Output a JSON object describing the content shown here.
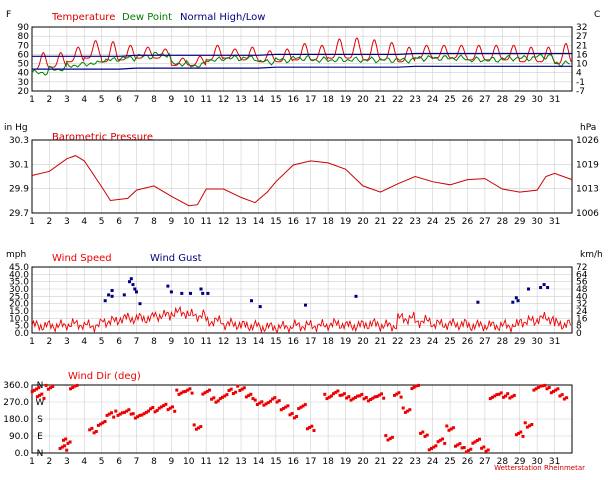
{
  "colors": {
    "temperature": "#dd0000",
    "dew_point": "#008000",
    "normal": "#000080",
    "pressure": "#cc0000",
    "wind_speed": "#ee0000",
    "wind_gust": "#000080",
    "wind_dir": "#ee0000",
    "grid": "#cfcfcf"
  },
  "x_days": [
    "1",
    "2",
    "3",
    "4",
    "5",
    "6",
    "7",
    "8",
    "9",
    "10",
    "11",
    "12",
    "13",
    "14",
    "15",
    "16",
    "17",
    "18",
    "19",
    "20",
    "21",
    "22",
    "23",
    "24",
    "25",
    "26",
    "27",
    "28",
    "29",
    "30",
    "31"
  ],
  "credit": "Wetterstation Rheinmetar",
  "chart_data": [
    {
      "type": "line",
      "id": "temperature",
      "legend": [
        "Temperature",
        "Dew Point",
        "Normal High/Low"
      ],
      "left_unit": "F",
      "right_unit": "C",
      "ylim": [
        20,
        90
      ],
      "yticks": [
        "90",
        "80",
        "70",
        "60",
        "50",
        "40",
        "30",
        "20"
      ],
      "right_ticks": [
        "32",
        "27",
        "21",
        "16",
        "10",
        "4",
        "-1",
        "-7"
      ],
      "grid": true,
      "series": [
        {
          "name": "Temperature",
          "peaks": [
            62,
            62,
            68,
            75,
            74,
            70,
            68,
            66,
            56,
            58,
            70,
            66,
            68,
            64,
            66,
            72,
            70,
            77,
            78,
            76,
            73,
            68,
            70,
            70,
            70,
            70,
            70,
            70,
            68,
            68,
            72
          ],
          "lows": [
            44,
            46,
            52,
            56,
            52,
            54,
            56,
            56,
            48,
            48,
            54,
            56,
            54,
            52,
            52,
            54,
            54,
            56,
            56,
            54,
            54,
            52,
            56,
            56,
            56,
            54,
            54,
            54,
            52,
            52,
            50
          ]
        },
        {
          "name": "Dew Point",
          "values": [
            40,
            44,
            48,
            50,
            54,
            56,
            58,
            60,
            50,
            48,
            54,
            56,
            56,
            52,
            54,
            56,
            54,
            54,
            54,
            54,
            54,
            54,
            56,
            56,
            56,
            54,
            54,
            56,
            56,
            58,
            50
          ]
        },
        {
          "name": "Normal High/Low",
          "high": [
            58,
            58,
            58,
            58,
            58,
            58,
            59,
            59,
            59,
            59,
            59,
            59,
            59,
            59,
            60,
            60,
            60,
            60,
            60,
            60,
            60,
            60,
            61,
            61,
            61,
            61,
            61,
            61,
            61,
            61,
            61
          ],
          "low": [
            44,
            44,
            44,
            44,
            44,
            44,
            45,
            45,
            45,
            45,
            45,
            45,
            45,
            45,
            46,
            46,
            46,
            46,
            46,
            46,
            46,
            46,
            47,
            47,
            47,
            47,
            47,
            47,
            47,
            47,
            47
          ]
        }
      ]
    },
    {
      "type": "line",
      "id": "pressure",
      "title": "Barometric Pressure",
      "left_unit": "in Hg",
      "right_unit": "hPa",
      "ylim": [
        29.7,
        30.4
      ],
      "yticks": [
        "30.3",
        "30.1",
        "29.9",
        "29.7"
      ],
      "right_ticks": [
        "1026",
        "1019",
        "1013",
        "1006"
      ],
      "grid": true,
      "series": [
        {
          "name": "Barometric Pressure",
          "x": [
            1,
            2,
            3,
            3.5,
            4,
            5,
            5.5,
            6.5,
            7,
            8,
            9,
            10,
            10.5,
            11,
            12,
            13,
            13.8,
            14.5,
            15,
            16,
            17,
            18,
            19,
            20,
            21,
            22,
            23,
            24,
            25,
            26,
            27,
            28,
            29,
            30,
            30.5,
            31,
            32
          ],
          "y": [
            30.06,
            30.1,
            30.22,
            30.25,
            30.2,
            29.95,
            29.82,
            29.84,
            29.92,
            29.96,
            29.86,
            29.77,
            29.78,
            29.93,
            29.93,
            29.85,
            29.8,
            29.9,
            30.0,
            30.16,
            30.2,
            30.18,
            30.12,
            29.96,
            29.9,
            29.98,
            30.05,
            30.0,
            29.97,
            30.02,
            30.03,
            29.93,
            29.9,
            29.92,
            30.05,
            30.08,
            30.02
          ]
        }
      ]
    },
    {
      "type": "line",
      "id": "wind",
      "legend": [
        "Wind Speed",
        "Wind Gust"
      ],
      "left_unit": "mph",
      "right_unit": "km/h",
      "ylim": [
        0,
        45
      ],
      "yticks": [
        "45.0",
        "40.0",
        "35.0",
        "30.0",
        "25.0",
        "20.0",
        "15.0",
        "10.0",
        "5.0",
        "0.0"
      ],
      "right_ticks": [
        "72",
        "64",
        "56",
        "48",
        "40",
        "32",
        "24",
        "16",
        "8",
        "0"
      ],
      "grid": true,
      "series": [
        {
          "name": "Wind Speed",
          "values": [
            5,
            5,
            6,
            5,
            8,
            10,
            10,
            12,
            14,
            12,
            8,
            6,
            5,
            4,
            4,
            5,
            5,
            6,
            5,
            6,
            5,
            10,
            8,
            6,
            6,
            5,
            5,
            5,
            8,
            10,
            6
          ]
        },
        {
          "name": "Wind Gust",
          "x": [
            5.2,
            5.4,
            5.6,
            5.6,
            6.3,
            6.6,
            6.7,
            6.8,
            6.9,
            7.0,
            7.2,
            8.8,
            9.0,
            9.6,
            10.1,
            10.7,
            10.8,
            11.1,
            13.6,
            14.1,
            16.7,
            19.6,
            26.6,
            28.6,
            28.8,
            28.9,
            29.5,
            30.2,
            30.4,
            30.6
          ],
          "y": [
            22,
            26,
            29,
            25,
            26,
            35,
            37,
            33,
            30,
            28,
            20,
            32,
            28,
            27,
            27,
            30,
            27,
            27,
            22,
            18,
            19,
            25,
            21,
            21,
            24,
            22,
            30,
            31,
            33,
            31
          ]
        }
      ]
    },
    {
      "type": "scatter",
      "id": "wind_dir",
      "title": "Wind Dir (deg)",
      "ylim": [
        0,
        360
      ],
      "yticks": [
        "360.0",
        "270.0",
        "180.0",
        "90.0",
        "0.0"
      ],
      "compass": [
        "N",
        "W",
        "S",
        "E",
        "N"
      ],
      "grid": true,
      "series": [
        {
          "name": "Wind Dir",
          "x": [
            1.2,
            1.5,
            2.0,
            2.8,
            3.0,
            3.4,
            4.5,
            5.0,
            5.5,
            6.0,
            6.5,
            7.0,
            7.5,
            8.0,
            8.5,
            9.0,
            9.5,
            10.0,
            10.5,
            11.0,
            11.5,
            12.0,
            12.5,
            13.0,
            13.5,
            14.0,
            14.5,
            15.0,
            15.5,
            16.0,
            16.5,
            17.0,
            18.0,
            18.5,
            19.0,
            19.5,
            20.0,
            20.5,
            21.0,
            21.5,
            22.0,
            22.5,
            23.0,
            23.5,
            24.0,
            24.5,
            25.0,
            25.5,
            26.0,
            26.5,
            27.0,
            27.5,
            28.0,
            28.5,
            29.0,
            29.5,
            30.0,
            30.5,
            31.0,
            31.5
          ],
          "y": [
            340,
            300,
            350,
            30,
            60,
            350,
            120,
            160,
            200,
            210,
            220,
            200,
            210,
            230,
            250,
            230,
            320,
            330,
            140,
            320,
            280,
            300,
            330,
            340,
            300,
            270,
            260,
            280,
            240,
            200,
            250,
            130,
            300,
            320,
            300,
            290,
            300,
            290,
            300,
            80,
            310,
            230,
            350,
            100,
            30,
            60,
            130,
            40,
            20,
            60,
            20,
            300,
            310,
            300,
            100,
            150,
            340,
            350,
            330,
            300
          ]
        }
      ]
    }
  ]
}
